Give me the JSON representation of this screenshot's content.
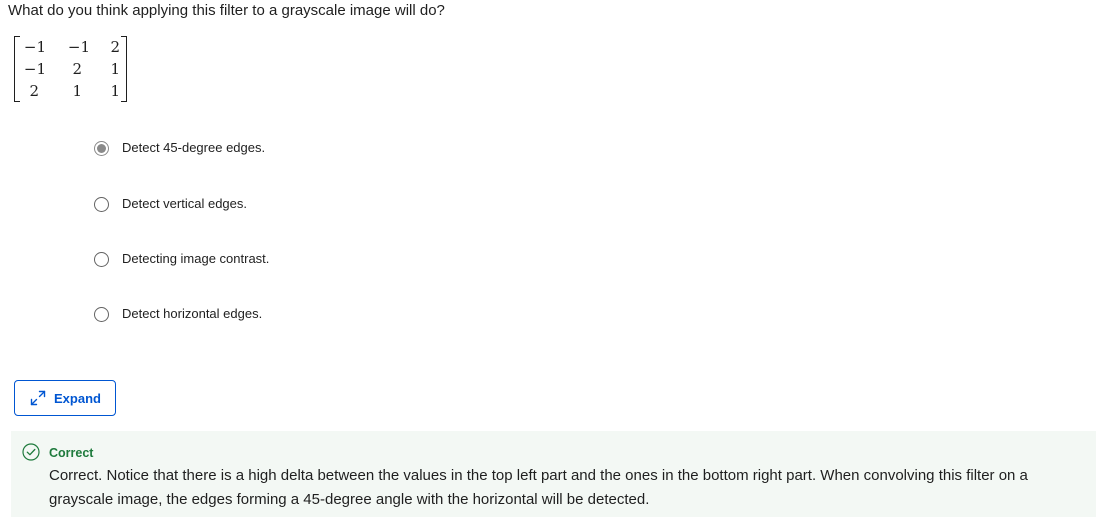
{
  "question": {
    "text": "What do you think applying this filter to a grayscale image will do?"
  },
  "matrix": {
    "rows": [
      [
        "−1",
        "−1",
        "2"
      ],
      [
        "−1",
        "2",
        "1"
      ],
      [
        "2",
        "1",
        "1"
      ]
    ]
  },
  "options": [
    {
      "label": "Detect 45-degree edges.",
      "selected": true
    },
    {
      "label": "Detect vertical edges.",
      "selected": false
    },
    {
      "label": "Detecting image contrast.",
      "selected": false
    },
    {
      "label": "Detect horizontal edges.",
      "selected": false
    }
  ],
  "expand": {
    "label": "Expand",
    "icon": "expand-arrows-icon",
    "color": "#0056d2"
  },
  "feedback": {
    "icon": "check-circle-icon",
    "title": "Correct",
    "text": "Correct. Notice that there is a high delta between the values in the top left part and the ones in the bottom right part. When convolving this filter on a grayscale image, the edges forming a 45-degree angle with the horizontal will be detected.",
    "accent": "#1e7a3c",
    "background": "#f3f8f4"
  }
}
